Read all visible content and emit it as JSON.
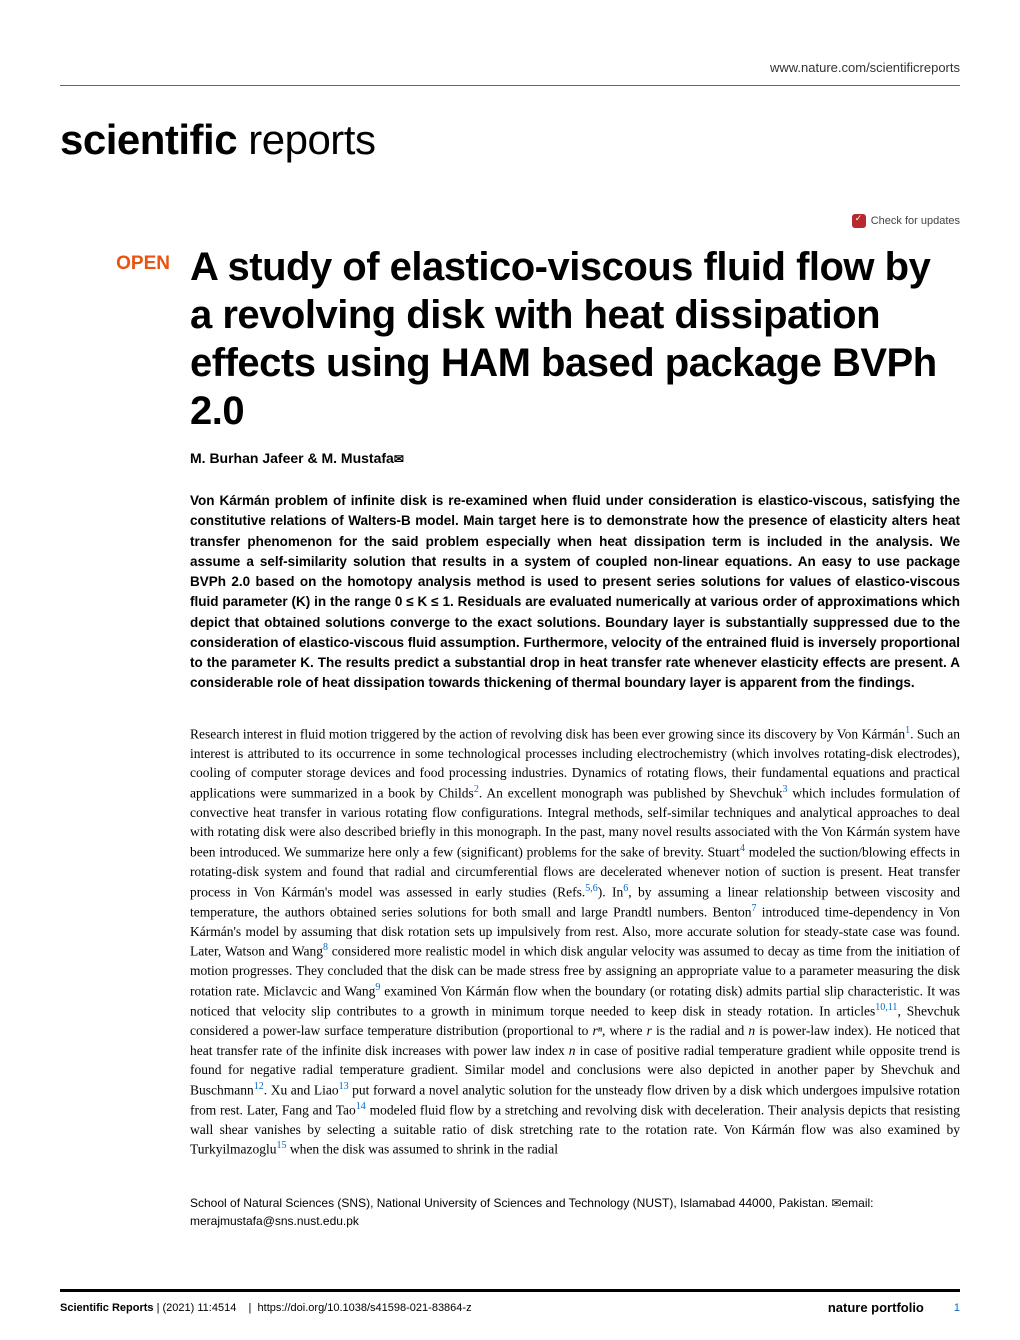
{
  "header": {
    "url": "www.nature.com/scientificreports"
  },
  "journal": {
    "name_bold": "scientific",
    "name_light": " reports"
  },
  "badges": {
    "open_label": "OPEN",
    "check_updates": "Check for updates"
  },
  "article": {
    "title": "A study of elastico-viscous fluid flow by a revolving disk with heat dissipation effects using HAM based package BVPh 2.0",
    "authors": "M. Burhan Jafeer & M. Mustafa"
  },
  "abstract": {
    "text": "Von Kármán problem of infinite disk is re-examined when fluid under consideration is elastico-viscous, satisfying the constitutive relations of Walters-B model. Main target here is to demonstrate how the presence of elasticity alters heat transfer phenomenon for the said problem especially when heat dissipation term is included in the analysis. We assume a self-similarity solution that results in a system of coupled non-linear equations. An easy to use package BVPh 2.0 based on the homotopy analysis method is used to present series solutions for values of elastico-viscous fluid parameter (K) in the range 0 ≤ K ≤ 1. Residuals are evaluated numerically at various order of approximations which depict that obtained solutions converge to the exact solutions. Boundary layer is substantially suppressed due to the consideration of elastico-viscous fluid assumption. Furthermore, velocity of the entrained fluid is inversely proportional to the parameter K. The results predict a substantial drop in heat transfer rate whenever elasticity effects are present. A considerable role of heat dissipation towards thickening of thermal boundary layer is apparent from the findings."
  },
  "body": {
    "p1_a": "Research interest in fluid motion triggered by the action of revolving disk has been ever growing since its discovery by Von Kármán",
    "ref1": "1",
    "p1_b": ". Such an interest is attributed to its occurrence in some technological processes including electrochemistry (which involves rotating-disk electrodes), cooling of computer storage devices and food processing industries. Dynamics of rotating flows, their fundamental equations and practical applications were summarized in a book by Childs",
    "ref2": "2",
    "p1_c": ". An excellent monograph was published by Shevchuk",
    "ref3": "3",
    "p1_d": " which includes formulation of convective heat transfer in various rotating flow configurations. Integral methods, self-similar techniques and analytical approaches to deal with rotating disk were also described briefly in this monograph. In the past, many novel results associated with the Von Kármán system have been introduced. We summarize here only a few (significant) problems for the sake of brevity. Stuart",
    "ref4": "4",
    "p1_e": " modeled the suction/blowing effects in rotating-disk system and found that radial and circumferential flows are decelerated whenever notion of suction is present. Heat transfer process in Von Kármán's model was assessed in early studies (Refs.",
    "ref56": "5,6",
    "p1_f": "). In",
    "ref6": "6",
    "p1_g": ", by assuming a linear relationship between viscosity and temperature, the authors obtained series solutions for both small and large Prandtl numbers. Benton",
    "ref7": "7",
    "p1_h": " introduced time-dependency in Von Kármán's model by assuming that disk rotation sets up impulsively from rest. Also, more accurate solution for steady-state case was found. Later, Watson and Wang",
    "ref8": "8",
    "p1_i": " considered more realistic model in which disk angular velocity was assumed to decay as time from the initiation of motion progresses. They concluded that the disk can be made stress free by assigning an appropriate value to a parameter measuring the disk rotation rate. Miclavcic and Wang",
    "ref9": "9",
    "p1_j": " examined Von Kármán flow when the boundary (or rotating disk) admits partial slip characteristic. It was noticed that velocity slip contributes to a growth in minimum torque needed to keep disk in steady rotation. In articles",
    "ref1011": "10,11",
    "p1_k": ", Shevchuk considered a power-law surface temperature distribution (proportional to ",
    "rn": "rⁿ",
    "p1_l": ", where ",
    "r_var": "r",
    "p1_m": " is the radial and ",
    "n_var": "n",
    "p1_n": " is power-law index). He noticed that heat transfer rate of the infinite disk increases with power law index ",
    "n_var2": "n",
    "p1_o": " in case of positive radial temperature gradient while opposite trend is found for negative radial temperature gradient. Similar model and conclusions were also depicted in another paper by Shevchuk and Buschmann",
    "ref12": "12",
    "p1_p": ". Xu and Liao",
    "ref13": "13",
    "p1_q": " put forward a novel analytic solution for the unsteady flow driven by a disk which undergoes impulsive rotation from rest. Later, Fang and Tao",
    "ref14": "14",
    "p1_r": " modeled fluid flow by a stretching and revolving disk with deceleration. Their analysis depicts that resisting wall shear vanishes by selecting a suitable ratio of disk stretching rate to the rotation rate. Von Kármán flow was also examined by Turkyilmazoglu",
    "ref15": "15",
    "p1_s": " when the disk was assumed to shrink in the radial"
  },
  "affiliation": {
    "text": "School of Natural Sciences (SNS), National University of Sciences and Technology (NUST), Islamabad 44000, Pakistan. ",
    "email_label": "email: ",
    "email": "merajmustafa@sns.nust.edu.pk"
  },
  "footer": {
    "journal": "Scientific Reports",
    "citation": "(2021) 11:4514",
    "doi": "https://doi.org/10.1038/s41598-021-83864-z",
    "publisher": "nature portfolio",
    "page": "1"
  },
  "colors": {
    "open_badge": "#e85412",
    "ref_link": "#0066cc",
    "check_icon": "#b8292f",
    "text": "#000000",
    "background": "#ffffff"
  },
  "typography": {
    "journal_title_size": 42,
    "article_title_size": 40,
    "body_size": 13.5,
    "abstract_size": 13.5,
    "authors_size": 14,
    "footer_size": 11
  }
}
